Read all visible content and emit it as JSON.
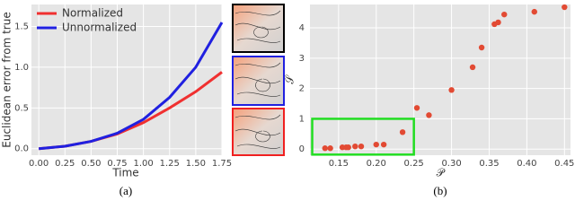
{
  "chart_data": [
    {
      "type": "line",
      "caption": "(a)",
      "xlabel": "Time",
      "ylabel": "Euclidean error from true",
      "x": [
        0,
        0.25,
        0.5,
        0.75,
        1.0,
        1.25,
        1.5,
        1.75
      ],
      "series": [
        {
          "name": "Normalized",
          "color": "#f03030",
          "values": [
            0,
            0.03,
            0.09,
            0.18,
            0.32,
            0.5,
            0.7,
            0.94
          ]
        },
        {
          "name": "Unnormalized",
          "color": "#2020e0",
          "values": [
            0,
            0.03,
            0.09,
            0.19,
            0.36,
            0.63,
            1.0,
            1.55
          ]
        }
      ],
      "xlim": [
        -0.07,
        1.75
      ],
      "ylim": [
        -0.08,
        1.77
      ],
      "xticks": [
        {
          "value": 0,
          "label": "0.00"
        },
        0.25,
        {
          "value": 0.5,
          "label": "0.50"
        },
        0.75,
        {
          "value": 1,
          "label": "1.00"
        },
        1.25,
        {
          "value": 1.5,
          "label": "1.50"
        },
        1.75
      ],
      "yticks": [
        {
          "value": 0,
          "label": "0.0"
        },
        0.5,
        {
          "value": 1,
          "label": "1.0"
        },
        1.5
      ],
      "grid": true,
      "legend": "upper-left"
    },
    {
      "type": "scatter",
      "caption": "(b)",
      "xlabel": "𝒫",
      "ylabel": "𝒮",
      "color": "#e24a33",
      "x": [
        0.132,
        0.139,
        0.155,
        0.16,
        0.163,
        0.172,
        0.18,
        0.2,
        0.21,
        0.235,
        0.254,
        0.27,
        0.3,
        0.328,
        0.34,
        0.357,
        0.362,
        0.37,
        0.41,
        0.45
      ],
      "values": [
        0.03,
        0.03,
        0.06,
        0.06,
        0.06,
        0.09,
        0.09,
        0.15,
        0.15,
        0.56,
        1.36,
        1.12,
        1.95,
        2.7,
        3.35,
        4.12,
        4.18,
        4.44,
        4.53,
        4.68
      ],
      "xlim": [
        0.112,
        0.458
      ],
      "ylim": [
        -0.2,
        4.77
      ],
      "xticks": [
        0.15,
        {
          "value": 0.2,
          "label": "0.20"
        },
        0.25,
        {
          "value": 0.3,
          "label": "0.30"
        },
        0.35,
        {
          "value": 0.4,
          "label": "0.40"
        },
        0.45
      ],
      "yticks": [
        0,
        1,
        2,
        3,
        4
      ],
      "grid": true,
      "highlight_box": {
        "x": [
          0.115,
          0.25
        ],
        "y": [
          -0.18,
          1.0
        ],
        "color": "#22dd22"
      }
    }
  ]
}
